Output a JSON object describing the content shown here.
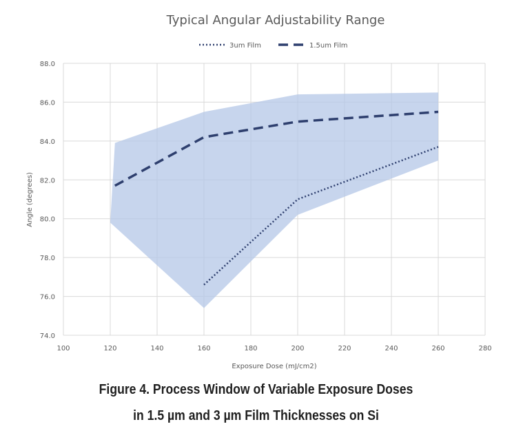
{
  "chart_data": {
    "type": "line",
    "title": "Typical Angular Adjustability Range",
    "xlabel": "Exposure Dose (mJ/cm2)",
    "ylabel": "Angle (degrees)",
    "xlim": [
      100,
      280
    ],
    "ylim": [
      74.0,
      88.0
    ],
    "x_ticks": [
      "100",
      "120",
      "140",
      "160",
      "180",
      "200",
      "220",
      "240",
      "260",
      "280"
    ],
    "y_ticks": [
      "74.0",
      "76.0",
      "78.0",
      "80.0",
      "82.0",
      "84.0",
      "86.0",
      "88.0"
    ],
    "grid": true,
    "legend_position": "top",
    "series": [
      {
        "name": "3um Film",
        "style": "dotted",
        "color": "#2e3f6e",
        "points": [
          [
            160,
            76.6
          ],
          [
            200,
            81.0
          ],
          [
            260,
            83.7
          ]
        ]
      },
      {
        "name": "1.5um Film",
        "style": "dashed",
        "color": "#2e3f6e",
        "points": [
          [
            122,
            81.7
          ],
          [
            160,
            84.2
          ],
          [
            200,
            85.0
          ],
          [
            260,
            85.5
          ]
        ]
      }
    ],
    "range_band": {
      "color": "#b4c7e7",
      "upper": [
        [
          122,
          83.9
        ],
        [
          160,
          85.5
        ],
        [
          200,
          86.4
        ],
        [
          260,
          86.5
        ]
      ],
      "lower": [
        [
          120,
          79.8
        ],
        [
          160,
          75.4
        ],
        [
          200,
          80.2
        ],
        [
          260,
          83.0
        ]
      ]
    }
  },
  "caption": {
    "line1": "Figure 4. Process Window of Variable Exposure Doses",
    "line2": "in 1.5 µm and 3 µm Film Thicknesses on Si"
  }
}
